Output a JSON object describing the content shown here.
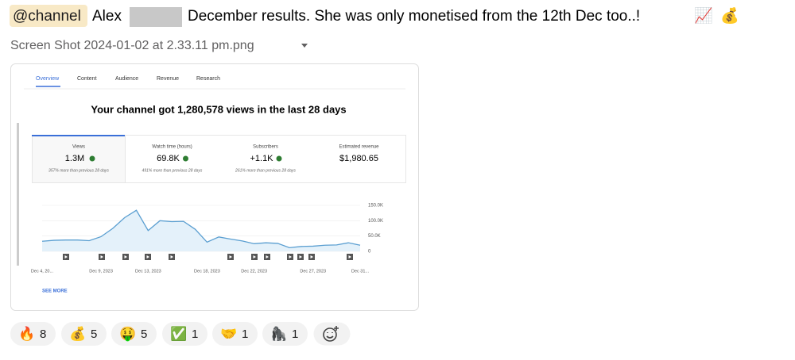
{
  "message": {
    "mention": "@channel",
    "author_text": "Alex",
    "text": "December results. She was only monetised from the 12th Dec too..!",
    "emoji": [
      "📈",
      "💰"
    ]
  },
  "attachment": {
    "filename": "Screen Shot 2024-01-02 at 2.33.11 pm.png"
  },
  "screenshot": {
    "tabs": [
      "Overview",
      "Content",
      "Audience",
      "Revenue",
      "Research"
    ],
    "headline": "Your channel got 1,280,578 views in the last 28 days",
    "metrics": [
      {
        "label": "Views",
        "value": "1.3M",
        "note": "357% more than previous 28 days"
      },
      {
        "label": "Watch time (hours)",
        "value": "69.8K",
        "note": "491% more than previous 28 days"
      },
      {
        "label": "Subscribers",
        "value": "+1.1K",
        "note": "261% more than previous 28 days"
      },
      {
        "label": "Estimated revenue",
        "value": "$1,980.65"
      }
    ],
    "see_more": "SEE MORE"
  },
  "chart_data": {
    "type": "area",
    "color": "#5b9fd1",
    "categories": [
      "Dec 4, 20...",
      null,
      null,
      null,
      null,
      "Dec 9, 2023",
      null,
      null,
      null,
      "Dec 13, 2023",
      null,
      null,
      null,
      null,
      "Dec 18, 2023",
      null,
      null,
      null,
      "Dec 22, 2023",
      null,
      null,
      null,
      null,
      "Dec 27, 2023",
      null,
      null,
      null,
      "Dec 31..."
    ],
    "values": [
      33000,
      36000,
      37000,
      37000,
      35000,
      48000,
      75000,
      110000,
      134000,
      68000,
      100000,
      97000,
      98000,
      72000,
      30000,
      47000,
      40000,
      34000,
      25000,
      28000,
      26000,
      12000,
      16000,
      17000,
      20000,
      21000,
      28000,
      20000
    ],
    "ylim": [
      0,
      150000
    ],
    "yticks": [
      0,
      {
        "value": 50000,
        "label": "50.0K"
      },
      {
        "value": 100000,
        "label": "100.0K"
      },
      {
        "value": 150000,
        "label": "150.0K"
      }
    ],
    "grid": true
  },
  "reactions": [
    {
      "emoji": "🔥",
      "count": 8
    },
    {
      "emoji": "💰",
      "count": 5
    },
    {
      "emoji": "🤑",
      "count": 5
    },
    {
      "emoji": "✅",
      "count": 1
    },
    {
      "emoji": "🤝",
      "count": 1
    },
    {
      "emoji": "🦍",
      "count": 1
    }
  ]
}
